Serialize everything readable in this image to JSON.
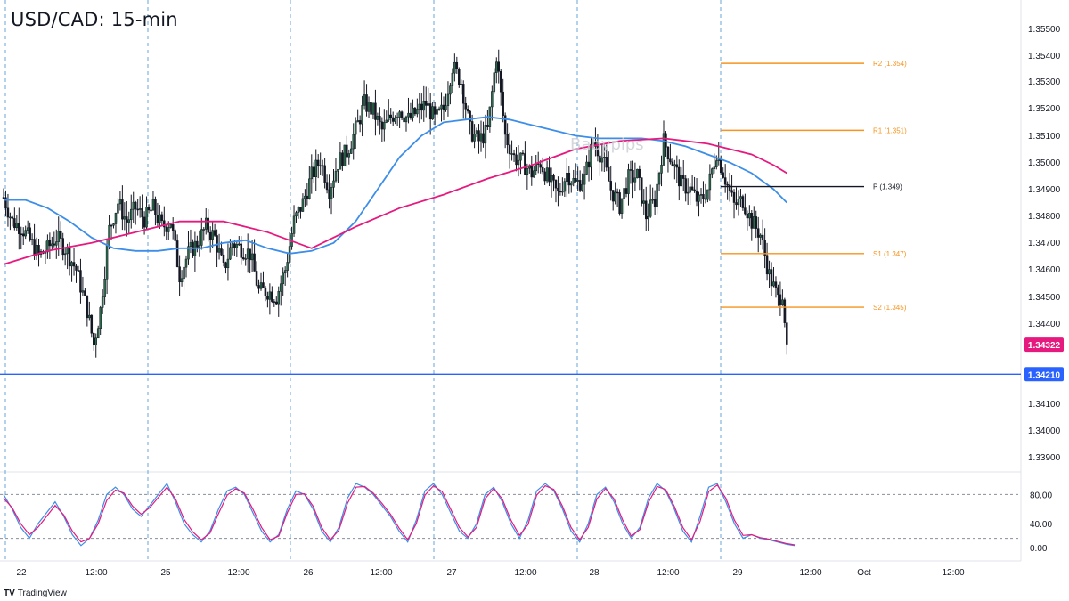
{
  "title": "USD/CAD: 15-min",
  "watermark": "Babypips",
  "branding": {
    "logo": "TV",
    "name": "TradingView"
  },
  "colors": {
    "up": "#26a69a",
    "down": "#131722",
    "bull_body": "#2a6b4a",
    "ma_fast": "#3d8ee8",
    "ma_slow": "#e6197f",
    "pivot_orange": "#f7931e",
    "pivot_black": "#131722",
    "support": "#2962ff",
    "current_price": "#e6197f",
    "stoch_k": "#3d8ee8",
    "stoch_d": "#e6197f",
    "grid_dash": "#5b9bd5"
  },
  "chart_data": [
    {
      "type": "candlestick",
      "title": "USD/CAD: 15-min",
      "ylim": [
        1.3384,
        1.3559
      ],
      "y_ticks": [
        "1.35500",
        "1.35400",
        "1.35300",
        "1.35200",
        "1.35100",
        "1.35000",
        "1.34900",
        "1.34800",
        "1.34700",
        "1.34600",
        "1.34500",
        "1.34400",
        "1.34100",
        "1.34000",
        "1.33900"
      ],
      "x_ticks": [
        "22",
        "12:00",
        "25",
        "12:00",
        "26",
        "12:00",
        "27",
        "12:00",
        "28",
        "12:00",
        "29",
        "12:00",
        "Oct",
        "12:00"
      ],
      "session_separators": [
        "22",
        "25",
        "26",
        "27",
        "28",
        "29"
      ],
      "price_path": [
        [
          0,
          1.3487
        ],
        [
          4,
          1.3478
        ],
        [
          8,
          1.3476
        ],
        [
          12,
          1.3471
        ],
        [
          16,
          1.3465
        ],
        [
          20,
          1.3468
        ],
        [
          24,
          1.3472
        ],
        [
          28,
          1.3468
        ],
        [
          33,
          1.346
        ],
        [
          38,
          1.3445
        ],
        [
          41,
          1.3432
        ],
        [
          44,
          1.3445
        ],
        [
          48,
          1.3475
        ],
        [
          52,
          1.3485
        ],
        [
          56,
          1.3478
        ],
        [
          60,
          1.3483
        ],
        [
          64,
          1.3479
        ],
        [
          68,
          1.3483
        ],
        [
          72,
          1.3476
        ],
        [
          76,
          1.3478
        ],
        [
          80,
          1.3458
        ],
        [
          84,
          1.3466
        ],
        [
          88,
          1.347
        ],
        [
          92,
          1.3476
        ],
        [
          96,
          1.3472
        ],
        [
          100,
          1.346
        ],
        [
          104,
          1.347
        ],
        [
          108,
          1.3468
        ],
        [
          112,
          1.3466
        ],
        [
          116,
          1.3452
        ],
        [
          120,
          1.3452
        ],
        [
          124,
          1.345
        ],
        [
          128,
          1.346
        ],
        [
          132,
          1.3478
        ],
        [
          136,
          1.3485
        ],
        [
          140,
          1.3495
        ],
        [
          144,
          1.3501
        ],
        [
          148,
          1.349
        ],
        [
          152,
          1.35
        ],
        [
          156,
          1.3504
        ],
        [
          160,
          1.3512
        ],
        [
          164,
          1.3522
        ],
        [
          168,
          1.3519
        ],
        [
          172,
          1.3512
        ],
        [
          176,
          1.3517
        ],
        [
          180,
          1.352
        ],
        [
          184,
          1.3516
        ],
        [
          188,
          1.3519
        ],
        [
          192,
          1.3522
        ],
        [
          196,
          1.3516
        ],
        [
          200,
          1.352
        ],
        [
          204,
          1.3536
        ],
        [
          208,
          1.353
        ],
        [
          212,
          1.3512
        ],
        [
          216,
          1.3508
        ],
        [
          220,
          1.3512
        ],
        [
          224,
          1.354
        ],
        [
          228,
          1.351
        ],
        [
          232,
          1.3502
        ],
        [
          236,
          1.35
        ],
        [
          240,
          1.3496
        ],
        [
          244,
          1.35
        ],
        [
          248,
          1.3493
        ],
        [
          252,
          1.3488
        ],
        [
          256,
          1.3496
        ],
        [
          260,
          1.3492
        ],
        [
          264,
          1.3494
        ],
        [
          268,
          1.3508
        ],
        [
          272,
          1.3502
        ],
        [
          276,
          1.349
        ],
        [
          280,
          1.3484
        ],
        [
          284,
          1.3494
        ],
        [
          288,
          1.3495
        ],
        [
          292,
          1.348
        ],
        [
          296,
          1.3486
        ],
        [
          300,
          1.3508
        ],
        [
          304,
          1.35
        ],
        [
          308,
          1.3492
        ],
        [
          312,
          1.349
        ],
        [
          316,
          1.3485
        ],
        [
          320,
          1.349
        ],
        [
          324,
          1.3504
        ],
        [
          328,
          1.3494
        ],
        [
          332,
          1.3484
        ],
        [
          336,
          1.3486
        ],
        [
          340,
          1.3478
        ],
        [
          344,
          1.3473
        ],
        [
          348,
          1.3458
        ],
        [
          352,
          1.3449
        ],
        [
          354,
          1.3452
        ],
        [
          356,
          1.34322
        ]
      ]
    },
    {
      "type": "line",
      "name": "moving averages",
      "series": [
        {
          "name": "fast MA",
          "points": [
            [
              0,
              1.3486
            ],
            [
              10,
              1.3486
            ],
            [
              20,
              1.3483
            ],
            [
              30,
              1.3478
            ],
            [
              40,
              1.3472
            ],
            [
              50,
              1.3468
            ],
            [
              60,
              1.3467
            ],
            [
              70,
              1.3467
            ],
            [
              80,
              1.3468
            ],
            [
              90,
              1.3468
            ],
            [
              100,
              1.347
            ],
            [
              110,
              1.3471
            ],
            [
              120,
              1.3468
            ],
            [
              130,
              1.3466
            ],
            [
              140,
              1.3467
            ],
            [
              150,
              1.347
            ],
            [
              160,
              1.3478
            ],
            [
              170,
              1.349
            ],
            [
              180,
              1.3502
            ],
            [
              190,
              1.351
            ],
            [
              200,
              1.3515
            ],
            [
              210,
              1.3516
            ],
            [
              220,
              1.3517
            ],
            [
              230,
              1.3516
            ],
            [
              240,
              1.3514
            ],
            [
              250,
              1.3512
            ],
            [
              260,
              1.351
            ],
            [
              270,
              1.3509
            ],
            [
              280,
              1.3509
            ],
            [
              290,
              1.3509
            ],
            [
              300,
              1.3508
            ],
            [
              310,
              1.3506
            ],
            [
              320,
              1.3503
            ],
            [
              330,
              1.35
            ],
            [
              340,
              1.3496
            ],
            [
              350,
              1.349
            ],
            [
              356,
              1.3485
            ]
          ]
        },
        {
          "name": "slow MA",
          "points": [
            [
              0,
              1.3462
            ],
            [
              20,
              1.3467
            ],
            [
              40,
              1.347
            ],
            [
              60,
              1.3474
            ],
            [
              80,
              1.3478
            ],
            [
              100,
              1.3478
            ],
            [
              120,
              1.3474
            ],
            [
              140,
              1.3468
            ],
            [
              160,
              1.3476
            ],
            [
              180,
              1.3483
            ],
            [
              200,
              1.3488
            ],
            [
              220,
              1.3494
            ],
            [
              240,
              1.3499
            ],
            [
              260,
              1.3505
            ],
            [
              280,
              1.3508
            ],
            [
              300,
              1.3509
            ],
            [
              320,
              1.3507
            ],
            [
              340,
              1.3503
            ],
            [
              350,
              1.3499
            ],
            [
              356,
              1.3496
            ]
          ]
        }
      ]
    },
    {
      "type": "line",
      "name": "pivot levels",
      "levels": [
        {
          "label": "R2 (1.354)",
          "value": 1.3537,
          "kind": "resistance"
        },
        {
          "label": "R1 (1.351)",
          "value": 1.3512,
          "kind": "resistance"
        },
        {
          "label": "P (1.349)",
          "value": 1.3491,
          "kind": "pivot"
        },
        {
          "label": "S1 (1.347)",
          "value": 1.3466,
          "kind": "support"
        },
        {
          "label": "S2 (1.345)",
          "value": 1.3446,
          "kind": "support"
        }
      ]
    },
    {
      "type": "line",
      "name": "horizontal support",
      "value": 1.3421,
      "price_labels": {
        "support": "1.34210",
        "current": "1.34322"
      }
    },
    {
      "type": "line",
      "name": "stochastic oscillator",
      "ylim": [
        0,
        100
      ],
      "y_ticks": [
        "80.00",
        "40.00",
        "0.00"
      ],
      "bands": [
        80,
        20
      ],
      "series": [
        {
          "name": "%K",
          "values": [
            80,
            60,
            35,
            20,
            40,
            55,
            70,
            50,
            25,
            10,
            20,
            45,
            80,
            90,
            80,
            60,
            50,
            65,
            80,
            95,
            70,
            40,
            25,
            15,
            30,
            60,
            85,
            90,
            80,
            55,
            30,
            15,
            25,
            60,
            85,
            80,
            60,
            30,
            15,
            35,
            75,
            95,
            90,
            80,
            65,
            50,
            30,
            15,
            45,
            85,
            95,
            80,
            55,
            30,
            20,
            40,
            80,
            90,
            70,
            40,
            20,
            45,
            85,
            95,
            85,
            60,
            30,
            15,
            40,
            80,
            90,
            70,
            40,
            20,
            35,
            75,
            95,
            85,
            60,
            30,
            15,
            50,
            90,
            95,
            70,
            40,
            20,
            25,
            20,
            18,
            15,
            12,
            10
          ]
        },
        {
          "name": "%D",
          "values": [
            75,
            62,
            40,
            25,
            35,
            50,
            65,
            52,
            30,
            15,
            20,
            40,
            72,
            86,
            82,
            64,
            53,
            62,
            76,
            90,
            74,
            46,
            29,
            18,
            27,
            54,
            79,
            88,
            82,
            60,
            35,
            18,
            23,
            55,
            80,
            81,
            64,
            35,
            18,
            31,
            68,
            90,
            91,
            82,
            68,
            53,
            34,
            18,
            40,
            79,
            92,
            84,
            60,
            35,
            22,
            35,
            74,
            88,
            74,
            45,
            24,
            39,
            79,
            92,
            87,
            64,
            35,
            18,
            35,
            74,
            88,
            74,
            45,
            23,
            32,
            69,
            91,
            87,
            64,
            35,
            18,
            43,
            84,
            93,
            75,
            45,
            24,
            25,
            21,
            19,
            16,
            13,
            11
          ]
        }
      ]
    }
  ]
}
